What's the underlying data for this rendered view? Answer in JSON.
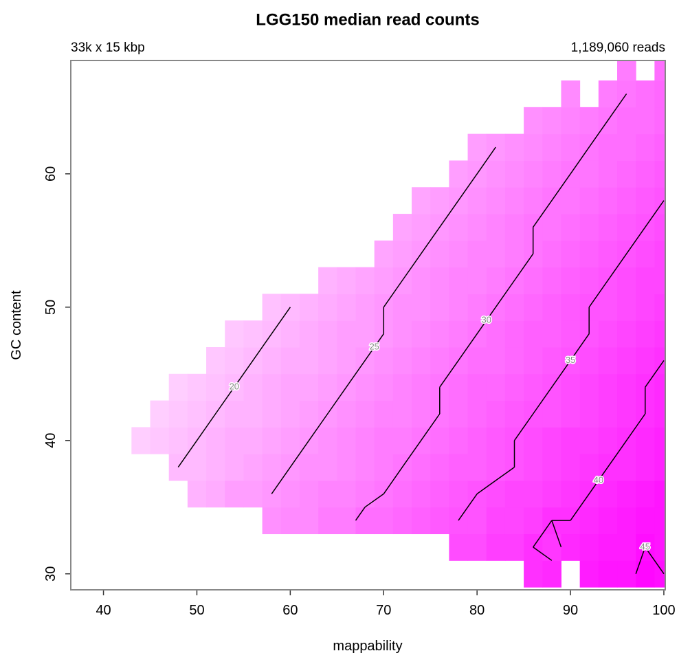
{
  "chart_data": {
    "type": "heatmap",
    "title": "LGG150 median read counts",
    "subtitle_left": "33k x 15 kbp",
    "subtitle_right": "1,189,060 reads",
    "x_label": "mappability",
    "y_label": "GC content",
    "xlim": [
      36.5,
      100.15
    ],
    "ylim": [
      28.8,
      68.5
    ],
    "xticks": [
      40,
      50,
      60,
      70,
      80,
      90,
      100
    ],
    "yticks": [
      30,
      40,
      50,
      60
    ],
    "x": [
      38,
      40,
      42,
      44,
      46,
      48,
      50,
      52,
      54,
      56,
      58,
      60,
      62,
      64,
      66,
      68,
      70,
      72,
      74,
      76,
      78,
      80,
      82,
      84,
      86,
      88,
      90,
      92,
      94,
      96,
      98,
      100
    ],
    "y": [
      30,
      32,
      34,
      36,
      38,
      40,
      42,
      44,
      46,
      48,
      50,
      52,
      54,
      56,
      58,
      60,
      62,
      64,
      66,
      68
    ],
    "z": [
      [
        null,
        null,
        null,
        null,
        null,
        null,
        null,
        null,
        null,
        null,
        null,
        null,
        null,
        null,
        null,
        null,
        null,
        null,
        null,
        null,
        null,
        null,
        null,
        null,
        40,
        41,
        null,
        43,
        44,
        44,
        46,
        45
      ],
      [
        null,
        null,
        null,
        null,
        null,
        null,
        null,
        null,
        null,
        null,
        null,
        null,
        null,
        null,
        null,
        null,
        null,
        null,
        null,
        null,
        36,
        36,
        38,
        38,
        40,
        39,
        41,
        42,
        43,
        43,
        45,
        44
      ],
      [
        null,
        null,
        null,
        null,
        null,
        null,
        null,
        null,
        null,
        null,
        26,
        27,
        27,
        29,
        29,
        31,
        31,
        32,
        33,
        34,
        35,
        35,
        37,
        37,
        38,
        40,
        40,
        41,
        42,
        43,
        44,
        44
      ],
      [
        null,
        null,
        null,
        null,
        null,
        null,
        21,
        22,
        24,
        24,
        25,
        26,
        27,
        28,
        28,
        29,
        30,
        31,
        32,
        33,
        34,
        35,
        36,
        37,
        37,
        38,
        39,
        40,
        41,
        42,
        43,
        44
      ],
      [
        null,
        null,
        null,
        null,
        null,
        20,
        20,
        21,
        22,
        23,
        24,
        25,
        26,
        26,
        27,
        28,
        29,
        30,
        31,
        32,
        33,
        33,
        34,
        35,
        36,
        37,
        38,
        39,
        40,
        40,
        41,
        42
      ],
      [
        null,
        null,
        null,
        17,
        18,
        19,
        20,
        21,
        22,
        22,
        23,
        24,
        25,
        26,
        27,
        28,
        29,
        29,
        30,
        31,
        32,
        33,
        34,
        35,
        36,
        37,
        38,
        38,
        39,
        40,
        41,
        42
      ],
      [
        null,
        null,
        null,
        null,
        17,
        18,
        19,
        20,
        21,
        21,
        22,
        23,
        24,
        25,
        26,
        27,
        28,
        28,
        29,
        30,
        31,
        32,
        33,
        34,
        35,
        35,
        36,
        37,
        38,
        39,
        40,
        41
      ],
      [
        null,
        null,
        null,
        null,
        null,
        17,
        18,
        19,
        20,
        21,
        22,
        23,
        23,
        24,
        25,
        26,
        27,
        28,
        29,
        30,
        31,
        32,
        32,
        33,
        34,
        35,
        36,
        37,
        38,
        39,
        40,
        41
      ],
      [
        null,
        null,
        null,
        null,
        null,
        null,
        null,
        18,
        19,
        20,
        21,
        22,
        22,
        23,
        24,
        25,
        26,
        27,
        28,
        29,
        30,
        31,
        31,
        32,
        33,
        34,
        35,
        36,
        37,
        38,
        39,
        40
      ],
      [
        null,
        null,
        null,
        null,
        null,
        null,
        null,
        null,
        18,
        19,
        20,
        21,
        22,
        23,
        24,
        24,
        25,
        26,
        27,
        28,
        29,
        30,
        31,
        32,
        33,
        33,
        34,
        35,
        36,
        37,
        38,
        39
      ],
      [
        null,
        null,
        null,
        null,
        null,
        null,
        null,
        null,
        null,
        null,
        19,
        20,
        21,
        22,
        23,
        24,
        25,
        26,
        26,
        27,
        28,
        29,
        30,
        31,
        32,
        33,
        34,
        35,
        35,
        36,
        37,
        38
      ],
      [
        null,
        null,
        null,
        null,
        null,
        null,
        null,
        null,
        null,
        null,
        null,
        null,
        null,
        21,
        22,
        23,
        24,
        25,
        26,
        27,
        28,
        28,
        29,
        30,
        31,
        32,
        33,
        34,
        35,
        36,
        37,
        37
      ],
      [
        null,
        null,
        null,
        null,
        null,
        null,
        null,
        null,
        null,
        null,
        null,
        null,
        null,
        null,
        null,
        null,
        23,
        24,
        25,
        26,
        27,
        28,
        28,
        29,
        30,
        31,
        32,
        33,
        34,
        35,
        36,
        37
      ],
      [
        null,
        null,
        null,
        null,
        null,
        null,
        null,
        null,
        null,
        null,
        null,
        null,
        null,
        null,
        null,
        null,
        null,
        23,
        24,
        25,
        26,
        27,
        28,
        29,
        30,
        30,
        31,
        32,
        33,
        34,
        35,
        36
      ],
      [
        null,
        null,
        null,
        null,
        null,
        null,
        null,
        null,
        null,
        null,
        null,
        null,
        null,
        null,
        null,
        null,
        null,
        null,
        23,
        24,
        25,
        26,
        27,
        28,
        29,
        30,
        30,
        31,
        32,
        33,
        34,
        35
      ],
      [
        null,
        null,
        null,
        null,
        null,
        null,
        null,
        null,
        null,
        null,
        null,
        null,
        null,
        null,
        null,
        null,
        null,
        null,
        null,
        null,
        24,
        25,
        26,
        27,
        28,
        29,
        30,
        30,
        31,
        32,
        33,
        34
      ],
      [
        null,
        null,
        null,
        null,
        null,
        null,
        null,
        null,
        null,
        null,
        null,
        null,
        null,
        null,
        null,
        null,
        null,
        null,
        null,
        null,
        null,
        24,
        25,
        26,
        27,
        28,
        29,
        30,
        31,
        31,
        32,
        33
      ],
      [
        null,
        null,
        null,
        null,
        null,
        null,
        null,
        null,
        null,
        null,
        null,
        null,
        null,
        null,
        null,
        null,
        null,
        null,
        null,
        null,
        null,
        null,
        null,
        null,
        26,
        27,
        28,
        29,
        30,
        31,
        31,
        32
      ],
      [
        null,
        null,
        null,
        null,
        null,
        null,
        null,
        null,
        null,
        null,
        null,
        null,
        null,
        null,
        null,
        null,
        null,
        null,
        null,
        null,
        null,
        null,
        null,
        null,
        null,
        null,
        27,
        null,
        29,
        30,
        31,
        32
      ],
      [
        null,
        null,
        null,
        null,
        null,
        null,
        null,
        null,
        null,
        null,
        null,
        null,
        null,
        null,
        null,
        null,
        null,
        null,
        null,
        null,
        null,
        null,
        null,
        null,
        null,
        null,
        null,
        null,
        null,
        29,
        null,
        31
      ]
    ],
    "zlim": [
      15,
      47
    ],
    "colors": [
      "#ffdcff",
      "#ff00ff"
    ],
    "contour_levels": [
      20,
      25,
      30,
      35,
      40,
      45
    ],
    "contour_color": "#000000",
    "contour_label_color": "#888888"
  }
}
